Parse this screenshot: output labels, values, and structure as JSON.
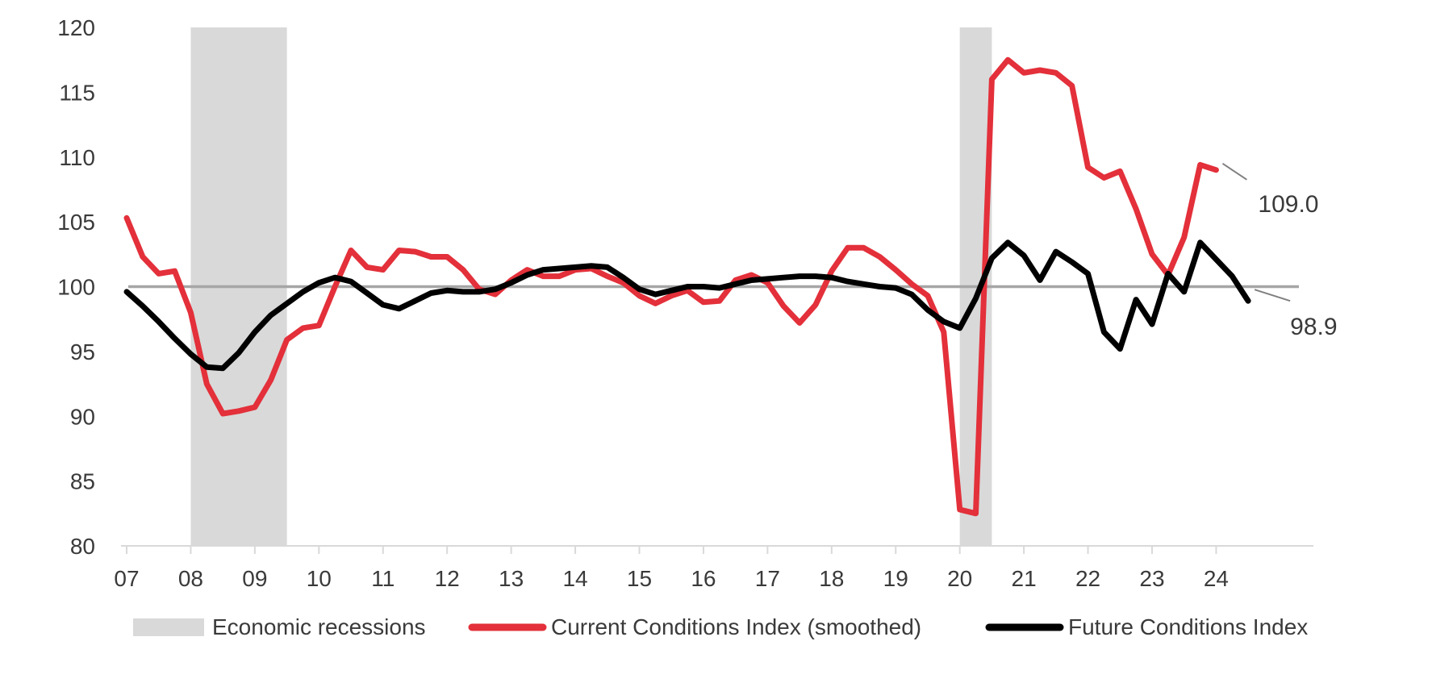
{
  "chart_data": {
    "type": "line",
    "title": "",
    "xlabel": "",
    "ylabel": "",
    "ylim": [
      80,
      120
    ],
    "xlim": [
      2007,
      2024.75
    ],
    "yticks": [
      80,
      85,
      90,
      95,
      100,
      105,
      110,
      115,
      120
    ],
    "xticks": [
      {
        "x": 2007,
        "label": "07"
      },
      {
        "x": 2008,
        "label": "08"
      },
      {
        "x": 2009,
        "label": "09"
      },
      {
        "x": 2010,
        "label": "10"
      },
      {
        "x": 2011,
        "label": "11"
      },
      {
        "x": 2012,
        "label": "12"
      },
      {
        "x": 2013,
        "label": "13"
      },
      {
        "x": 2014,
        "label": "14"
      },
      {
        "x": 2015,
        "label": "15"
      },
      {
        "x": 2016,
        "label": "16"
      },
      {
        "x": 2017,
        "label": "17"
      },
      {
        "x": 2018,
        "label": "18"
      },
      {
        "x": 2019,
        "label": "19"
      },
      {
        "x": 2020,
        "label": "20"
      },
      {
        "x": 2021,
        "label": "21"
      },
      {
        "x": 2022,
        "label": "22"
      },
      {
        "x": 2023,
        "label": "23"
      },
      {
        "x": 2024,
        "label": "24"
      }
    ],
    "reference_line": 100,
    "grid": false,
    "legend_position": "bottom",
    "recessions": [
      [
        2008.0,
        2009.5
      ],
      [
        2020.0,
        2020.5
      ]
    ],
    "colors": {
      "current": "#e3303a",
      "future": "#000000",
      "recession": "#d9d9d9",
      "reference": "#a6a6a6",
      "axis": "#d9d9d9"
    },
    "legend": {
      "recession": "Economic recessions",
      "current": "Current Conditions Index (smoothed)",
      "future": "Future Conditions Index"
    },
    "series": [
      {
        "key": "current",
        "name": "Current Conditions Index (smoothed)",
        "x": [
          2007.0,
          2007.25,
          2007.5,
          2007.75,
          2008.0,
          2008.25,
          2008.5,
          2008.75,
          2009.0,
          2009.25,
          2009.5,
          2009.75,
          2010.0,
          2010.25,
          2010.5,
          2010.75,
          2011.0,
          2011.25,
          2011.5,
          2011.75,
          2012.0,
          2012.25,
          2012.5,
          2012.75,
          2013.0,
          2013.25,
          2013.5,
          2013.75,
          2014.0,
          2014.25,
          2014.5,
          2014.75,
          2015.0,
          2015.25,
          2015.5,
          2015.75,
          2016.0,
          2016.25,
          2016.5,
          2016.75,
          2017.0,
          2017.25,
          2017.5,
          2017.75,
          2018.0,
          2018.25,
          2018.5,
          2018.75,
          2019.0,
          2019.25,
          2019.5,
          2019.75,
          2020.0,
          2020.25,
          2020.5,
          2020.75,
          2021.0,
          2021.25,
          2021.5,
          2021.75,
          2022.0,
          2022.25,
          2022.5,
          2022.75,
          2023.0,
          2023.25,
          2023.5,
          2023.75,
          2024.0
        ],
        "values": [
          105.3,
          102.3,
          101.0,
          101.2,
          98.0,
          92.5,
          90.2,
          90.4,
          90.7,
          92.8,
          95.9,
          96.8,
          97.0,
          100.0,
          102.8,
          101.5,
          101.3,
          102.8,
          102.7,
          102.3,
          102.3,
          101.3,
          99.8,
          99.4,
          100.5,
          101.3,
          100.8,
          100.8,
          101.3,
          101.4,
          100.8,
          100.3,
          99.3,
          98.7,
          99.3,
          99.7,
          98.8,
          98.9,
          100.5,
          100.9,
          100.3,
          98.5,
          97.2,
          98.6,
          101.2,
          103.0,
          103.0,
          102.3,
          101.3,
          100.2,
          99.3,
          96.5,
          82.8,
          82.5,
          116.0,
          117.5,
          116.5,
          116.7,
          116.5,
          115.5,
          109.2,
          108.4,
          108.9,
          106.0,
          102.5,
          100.9,
          103.8,
          109.4,
          109.0
        ]
      },
      {
        "key": "future",
        "name": "Future Conditions Index",
        "x": [
          2007.0,
          2007.25,
          2007.5,
          2007.75,
          2008.0,
          2008.25,
          2008.5,
          2008.75,
          2009.0,
          2009.25,
          2009.5,
          2009.75,
          2010.0,
          2010.25,
          2010.5,
          2010.75,
          2011.0,
          2011.25,
          2011.5,
          2011.75,
          2012.0,
          2012.25,
          2012.5,
          2012.75,
          2013.0,
          2013.25,
          2013.5,
          2013.75,
          2014.0,
          2014.25,
          2014.5,
          2014.75,
          2015.0,
          2015.25,
          2015.5,
          2015.75,
          2016.0,
          2016.25,
          2016.5,
          2016.75,
          2017.0,
          2017.25,
          2017.5,
          2017.75,
          2018.0,
          2018.25,
          2018.5,
          2018.75,
          2019.0,
          2019.25,
          2019.5,
          2019.75,
          2020.0,
          2020.25,
          2020.5,
          2020.75,
          2021.0,
          2021.25,
          2021.5,
          2021.75,
          2022.0,
          2022.25,
          2022.5,
          2022.75,
          2023.0,
          2023.25,
          2023.5,
          2023.75,
          2024.0,
          2024.25,
          2024.5
        ],
        "values": [
          99.6,
          98.5,
          97.3,
          96.0,
          94.8,
          93.8,
          93.7,
          94.9,
          96.5,
          97.8,
          98.7,
          99.6,
          100.3,
          100.7,
          100.4,
          99.5,
          98.6,
          98.3,
          98.9,
          99.5,
          99.7,
          99.6,
          99.6,
          99.8,
          100.3,
          100.9,
          101.3,
          101.4,
          101.5,
          101.6,
          101.5,
          100.7,
          99.8,
          99.4,
          99.7,
          100.0,
          100.0,
          99.9,
          100.2,
          100.5,
          100.6,
          100.7,
          100.8,
          100.8,
          100.7,
          100.4,
          100.2,
          100.0,
          99.9,
          99.4,
          98.2,
          97.3,
          96.8,
          99.1,
          102.2,
          103.4,
          102.4,
          100.5,
          102.7,
          101.9,
          101.0,
          96.5,
          95.2,
          99.0,
          97.1,
          101.0,
          99.6,
          103.4,
          102.1,
          100.8,
          98.9
        ]
      }
    ],
    "annotations": [
      {
        "series": "current",
        "text": "109.0"
      },
      {
        "series": "future",
        "text": "98.9"
      }
    ]
  }
}
